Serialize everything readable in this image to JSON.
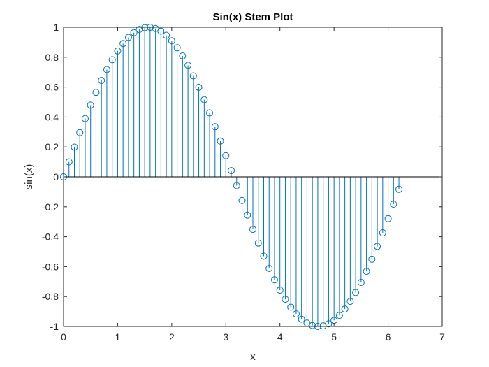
{
  "chart_data": {
    "type": "stem",
    "title": "Sin(x) Stem Plot",
    "xlabel": "x",
    "ylabel": "sin(x)",
    "xlim": [
      0,
      7
    ],
    "ylim": [
      -1,
      1
    ],
    "xticks": [
      "0",
      "1",
      "2",
      "3",
      "4",
      "5",
      "6",
      "7"
    ],
    "yticks": [
      "-1",
      "-0.8",
      "-0.6",
      "-0.4",
      "-0.2",
      "0",
      "0.2",
      "0.4",
      "0.6",
      "0.8",
      "1"
    ],
    "grid": false,
    "baseline": 0,
    "marker": "open-circle",
    "color": "#0072BD",
    "series": [
      {
        "x": [
          0,
          0.1,
          0.2,
          0.3,
          0.4,
          0.5,
          0.6,
          0.7,
          0.8,
          0.9,
          1.0,
          1.1,
          1.2,
          1.3,
          1.4,
          1.5,
          1.6,
          1.7,
          1.8,
          1.9,
          2.0,
          2.1,
          2.2,
          2.3,
          2.4,
          2.5,
          2.6,
          2.7,
          2.8,
          2.9,
          3.0,
          3.1,
          3.2,
          3.3,
          3.4,
          3.5,
          3.6,
          3.7,
          3.8,
          3.9,
          4.0,
          4.1,
          4.2,
          4.3,
          4.4,
          4.5,
          4.6,
          4.7,
          4.8,
          4.9,
          5.0,
          5.1,
          5.2,
          5.3,
          5.4,
          5.5,
          5.6,
          5.7,
          5.8,
          5.9,
          6.0,
          6.1,
          6.2
        ],
        "values": [
          0.0,
          0.0998,
          0.1987,
          0.2955,
          0.3894,
          0.4794,
          0.5646,
          0.6442,
          0.7174,
          0.7833,
          0.8415,
          0.8912,
          0.932,
          0.9636,
          0.9854,
          0.9975,
          0.9996,
          0.9917,
          0.9738,
          0.9463,
          0.9093,
          0.8632,
          0.8085,
          0.7457,
          0.6755,
          0.5985,
          0.5155,
          0.4274,
          0.335,
          0.2392,
          0.1411,
          0.0416,
          -0.0584,
          -0.1577,
          -0.2555,
          -0.3508,
          -0.4425,
          -0.5298,
          -0.6119,
          -0.6878,
          -0.7568,
          -0.8183,
          -0.8716,
          -0.9162,
          -0.9516,
          -0.9775,
          -0.9937,
          -0.9999,
          -0.9962,
          -0.9825,
          -0.9589,
          -0.9258,
          -0.8835,
          -0.8323,
          -0.7728,
          -0.7055,
          -0.6313,
          -0.5507,
          -0.4646,
          -0.3739,
          -0.2794,
          -0.1822,
          -0.0831
        ]
      }
    ]
  }
}
